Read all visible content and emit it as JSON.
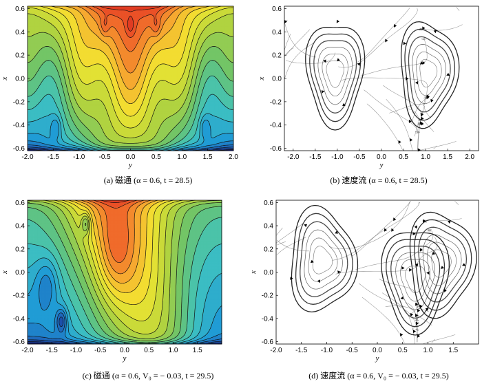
{
  "chart_data": [
    {
      "panel": "a",
      "type": "contour",
      "caption_label": "(a) 磁通",
      "caption_params": "(α = 0.6,  t = 28.5)",
      "xlabel": "y",
      "ylabel": "x",
      "xlim": [
        -2.0,
        2.0
      ],
      "ylim": [
        -0.62,
        0.62
      ],
      "xticks": [
        "-2.0",
        "-1.5",
        "-1.0",
        "-0.5",
        "0.0",
        "0.5",
        "1.0",
        "1.5",
        "2.0"
      ],
      "yticks": [
        "0.6",
        "0.4",
        "0.2",
        "0.0",
        "-0.2",
        "-0.4",
        "-0.6"
      ],
      "colormap": [
        "#1a237e",
        "#1e5ab4",
        "#1f9ad6",
        "#3fc3c0",
        "#6cc36a",
        "#b7d53c",
        "#f2e531",
        "#f6a630",
        "#ee5a29",
        "#d7281f"
      ],
      "features": [
        {
          "kind": "max",
          "y": -0.5,
          "x": 0.45
        },
        {
          "kind": "max",
          "y": 0.0,
          "x": 0.45
        },
        {
          "kind": "max",
          "y": 0.5,
          "x": 0.45
        },
        {
          "kind": "min",
          "y": -1.45,
          "x": -0.42
        },
        {
          "kind": "min",
          "y": 1.45,
          "x": -0.42
        }
      ]
    },
    {
      "panel": "b",
      "type": "streamline",
      "caption_label": "(b) 速度流",
      "caption_params": "(α = 0.6,  t = 28.5)",
      "xlabel": "y",
      "ylabel": "x",
      "xlim": [
        -2.2,
        2.2
      ],
      "ylim": [
        -0.62,
        0.62
      ],
      "xticks": [
        "-2.0",
        "-1.5",
        "-1.0",
        "-0.5",
        "0.0",
        "0.5",
        "1.0",
        "1.5",
        "2.0"
      ],
      "yticks": [
        "0.6",
        "0.4",
        "0.2",
        "0.0",
        "-0.2",
        "-0.4",
        "-0.6"
      ],
      "vortices": [
        {
          "y": -1.05,
          "x": 0.05,
          "sense": "ccw"
        },
        {
          "y": 1.05,
          "x": 0.05,
          "sense": "cw"
        }
      ]
    },
    {
      "panel": "c",
      "type": "contour",
      "caption_label": "(c) 磁通",
      "caption_params": "(α = 0.6, V₀ = −  0.03,  t = 29.5)",
      "xlabel": "y",
      "ylabel": "x",
      "xlim": [
        -2.0,
        2.0
      ],
      "ylim": [
        -0.62,
        0.62
      ],
      "xticks": [
        "-2.0",
        "-1.5",
        "-1.0",
        "-0.5",
        "0.0",
        "0.5",
        "1.0",
        "1.5"
      ],
      "yticks": [
        "0.6",
        "0.4",
        "0.2",
        "0.0",
        "-0.2",
        "-0.4",
        "-0.6"
      ],
      "colormap": [
        "#1a237e",
        "#1e5ab4",
        "#1f9ad6",
        "#3fc3c0",
        "#6cc36a",
        "#b7d53c",
        "#f2e531",
        "#f6a630",
        "#ee5a29",
        "#d7281f"
      ],
      "features": [
        {
          "kind": "max",
          "y": -0.2,
          "x": 0.15
        },
        {
          "kind": "min",
          "y": -0.8,
          "x": 0.42
        },
        {
          "kind": "min",
          "y": -1.3,
          "x": -0.42
        },
        {
          "kind": "min",
          "y": -1.6,
          "x": -0.1
        }
      ]
    },
    {
      "panel": "d",
      "type": "streamline",
      "caption_label": "(d) 速度流",
      "caption_params": "(α = 0.6, V₀ = −  0.03,  t = 29.5)",
      "xlabel": "y",
      "ylabel": "x",
      "xlim": [
        -2.0,
        2.0
      ],
      "ylim": [
        -0.62,
        0.62
      ],
      "xticks": [
        "-2.0",
        "-1.5",
        "-1.0",
        "-0.5",
        "0.0",
        "0.5",
        "1.0",
        "1.5"
      ],
      "yticks": [
        "0.6",
        "0.4",
        "0.2",
        "0.0",
        "-0.2",
        "-0.4",
        "-0.6"
      ],
      "vortices": [
        {
          "y": 0.75,
          "x": -0.05,
          "sense": "cw"
        },
        {
          "y": 1.25,
          "x": 0.08,
          "sense": "cw"
        },
        {
          "y": -1.1,
          "x": 0.1,
          "sense": "ccw"
        }
      ]
    }
  ]
}
